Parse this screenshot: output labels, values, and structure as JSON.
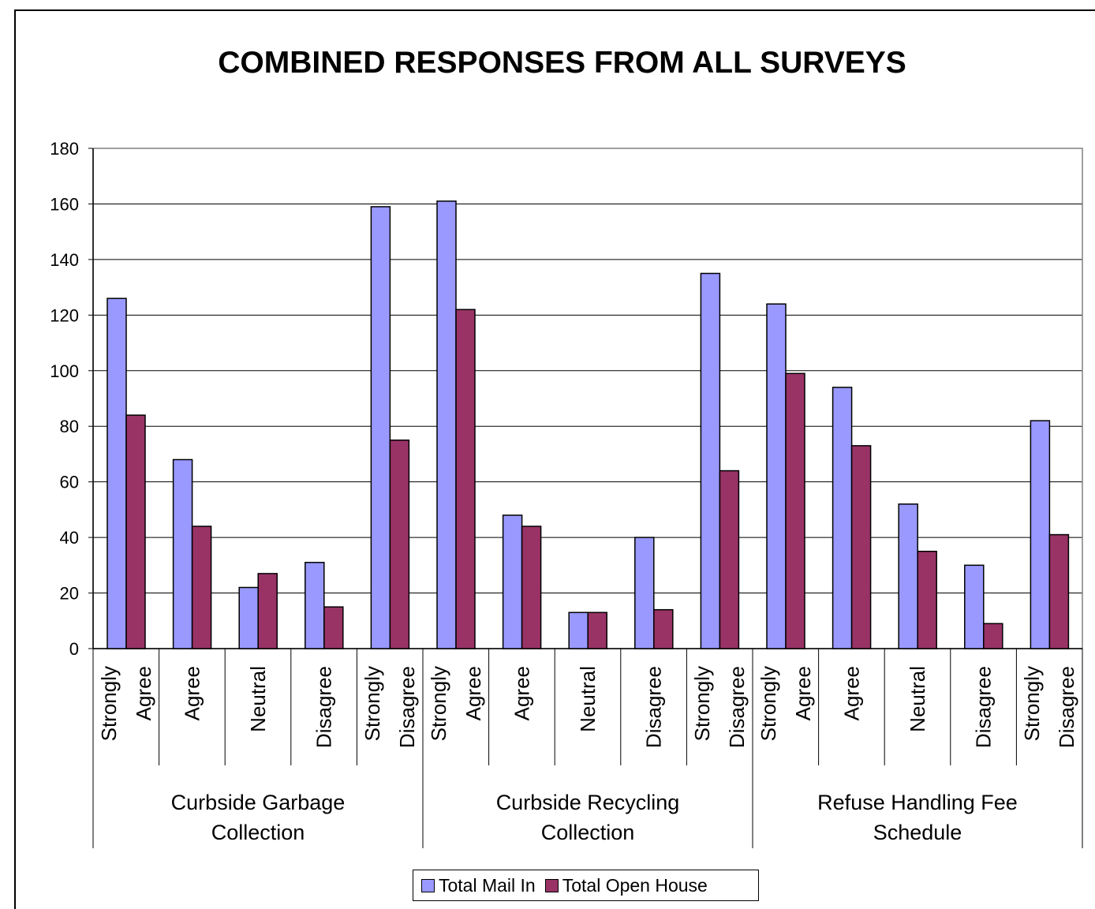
{
  "chart_data": {
    "type": "bar",
    "title": "COMBINED RESPONSES FROM ALL SURVEYS",
    "xlabel": "",
    "ylabel": "",
    "ylim": [
      0,
      180
    ],
    "yticks": [
      0,
      20,
      40,
      60,
      80,
      100,
      120,
      140,
      160,
      180
    ],
    "groups": [
      {
        "label": [
          "Curbside Garbage",
          "Collection"
        ],
        "categories": [
          [
            "Strongly",
            "Agree"
          ],
          [
            "Agree"
          ],
          [
            "Neutral"
          ],
          [
            "Disagree"
          ],
          [
            "Strongly",
            "Disagree"
          ]
        ]
      },
      {
        "label": [
          "Curbside Recycling",
          "Collection"
        ],
        "categories": [
          [
            "Strongly",
            "Agree"
          ],
          [
            "Agree"
          ],
          [
            "Neutral"
          ],
          [
            "Disagree"
          ],
          [
            "Strongly",
            "Disagree"
          ]
        ]
      },
      {
        "label": [
          "Refuse Handling Fee",
          "Schedule"
        ],
        "categories": [
          [
            "Strongly",
            "Agree"
          ],
          [
            "Agree"
          ],
          [
            "Neutral"
          ],
          [
            "Disagree"
          ],
          [
            "Strongly",
            "Disagree"
          ]
        ]
      }
    ],
    "series": [
      {
        "name": "Total Mail In",
        "color": "#9999FF",
        "values": [
          126,
          68,
          22,
          31,
          159,
          161,
          48,
          13,
          40,
          135,
          124,
          94,
          52,
          30,
          82
        ]
      },
      {
        "name": "Total Open House",
        "color": "#993366",
        "values": [
          84,
          44,
          27,
          15,
          75,
          122,
          44,
          13,
          14,
          64,
          99,
          73,
          35,
          9,
          41
        ]
      }
    ],
    "grid": true,
    "legend_position": "bottom"
  }
}
